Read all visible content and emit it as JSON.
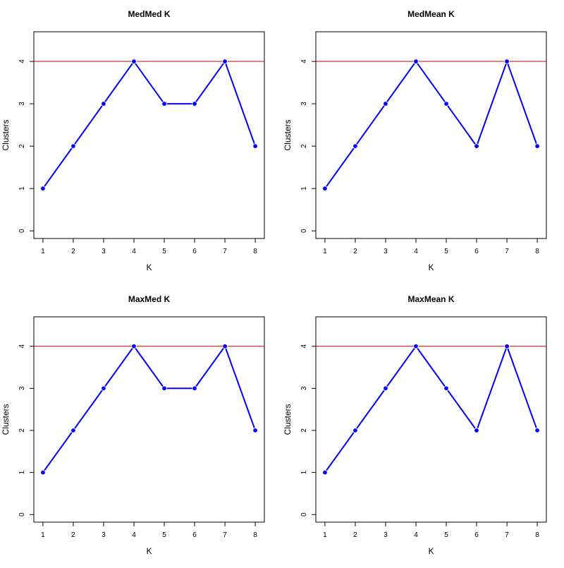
{
  "chart_data": [
    {
      "type": "line",
      "title": "MedMed K",
      "xlabel": "K",
      "ylabel": "Clusters",
      "x": [
        1,
        2,
        3,
        4,
        5,
        6,
        7,
        8
      ],
      "y": [
        1,
        2,
        3,
        4,
        3,
        3,
        4,
        2
      ],
      "xticks": [
        1,
        2,
        3,
        4,
        5,
        6,
        7,
        8
      ],
      "yticks": [
        0,
        1,
        2,
        3,
        4
      ],
      "xlim": [
        0.7,
        8.3
      ],
      "ylim": [
        -0.18,
        4.7
      ],
      "reference_line": 4,
      "grid": false,
      "line_color": "#0000ff",
      "reference_color": "#cd0000"
    },
    {
      "type": "line",
      "title": "MedMean K",
      "xlabel": "K",
      "ylabel": "Clusters",
      "x": [
        1,
        2,
        3,
        4,
        5,
        6,
        7,
        8
      ],
      "y": [
        1,
        2,
        3,
        4,
        3,
        2,
        4,
        2
      ],
      "xticks": [
        1,
        2,
        3,
        4,
        5,
        6,
        7,
        8
      ],
      "yticks": [
        0,
        1,
        2,
        3,
        4
      ],
      "xlim": [
        0.7,
        8.3
      ],
      "ylim": [
        -0.18,
        4.7
      ],
      "reference_line": 4,
      "grid": false,
      "line_color": "#0000ff",
      "reference_color": "#cd0000"
    },
    {
      "type": "line",
      "title": "MaxMed K",
      "xlabel": "K",
      "ylabel": "Clusters",
      "x": [
        1,
        2,
        3,
        4,
        5,
        6,
        7,
        8
      ],
      "y": [
        1,
        2,
        3,
        4,
        3,
        3,
        4,
        2
      ],
      "xticks": [
        1,
        2,
        3,
        4,
        5,
        6,
        7,
        8
      ],
      "yticks": [
        0,
        1,
        2,
        3,
        4
      ],
      "xlim": [
        0.7,
        8.3
      ],
      "ylim": [
        -0.18,
        4.7
      ],
      "reference_line": 4,
      "grid": false,
      "line_color": "#0000ff",
      "reference_color": "#cd0000"
    },
    {
      "type": "line",
      "title": "MaxMean K",
      "xlabel": "K",
      "ylabel": "Clusters",
      "x": [
        1,
        2,
        3,
        4,
        5,
        6,
        7,
        8
      ],
      "y": [
        1,
        2,
        3,
        4,
        3,
        2,
        4,
        2
      ],
      "xticks": [
        1,
        2,
        3,
        4,
        5,
        6,
        7,
        8
      ],
      "yticks": [
        0,
        1,
        2,
        3,
        4
      ],
      "xlim": [
        0.7,
        8.3
      ],
      "ylim": [
        -0.18,
        4.7
      ],
      "reference_line": 4,
      "grid": false,
      "line_color": "#0000ff",
      "reference_color": "#cd0000"
    }
  ]
}
